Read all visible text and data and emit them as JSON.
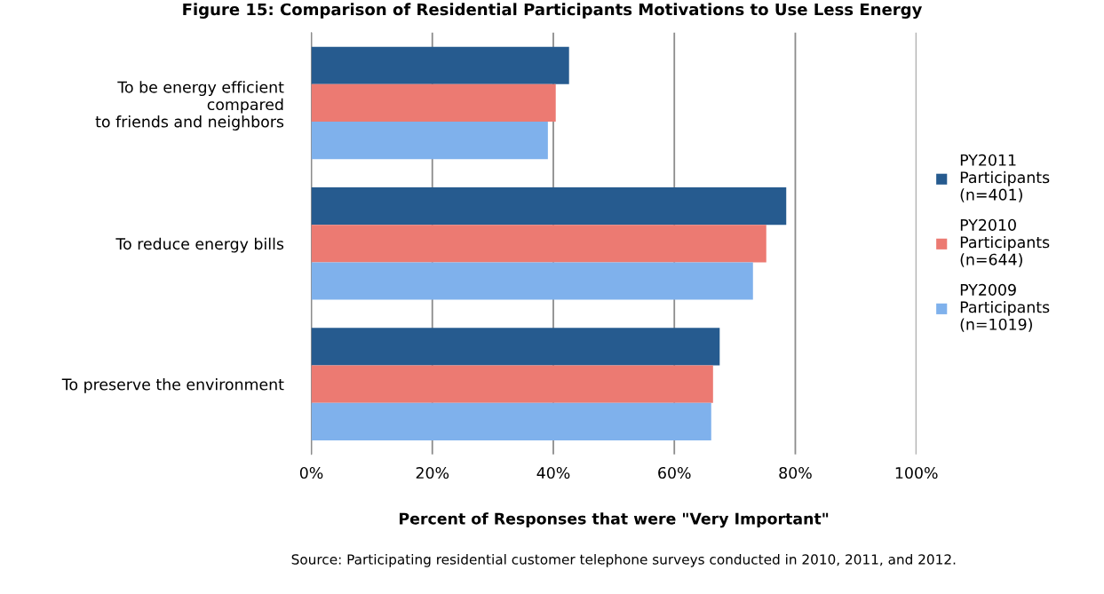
{
  "chart_data": {
    "type": "bar",
    "orientation": "horizontal",
    "title": "Figure 15: Comparison of Residential Participants Motivations to Use Less Energy",
    "xlabel": "Percent of Responses that were \"Very Important\"",
    "categories": [
      "To be energy efficient\ncompared\nto friends and neighbors",
      "To reduce energy bills",
      "To preserve the environment"
    ],
    "series": [
      {
        "name": "PY2011\nParticipants\n(n=401)",
        "color": "#265b8f",
        "values": [
          42.6,
          78.5,
          67.5
        ]
      },
      {
        "name": "PY2010\nParticipants\n(n=644)",
        "color": "#ec7a72",
        "values": [
          40.4,
          75.2,
          66.4
        ]
      },
      {
        "name": "PY2009\nParticipants\n(n=1019)",
        "color": "#7fb1ec",
        "values": [
          39.1,
          73.0,
          66.1
        ]
      }
    ],
    "xlim": [
      0,
      100
    ],
    "xticks": [
      {
        "value": 0,
        "label": "0%"
      },
      {
        "value": 20,
        "label": "20%"
      },
      {
        "value": 40,
        "label": "40%"
      },
      {
        "value": 60,
        "label": "60%"
      },
      {
        "value": 80,
        "label": "80%"
      },
      {
        "value": 100,
        "label": "100%"
      }
    ],
    "grid": "x",
    "legend": "right",
    "annotations": [
      "Source: Participating residential customer telephone surveys conducted in 2010, 2011, and 2012."
    ]
  }
}
